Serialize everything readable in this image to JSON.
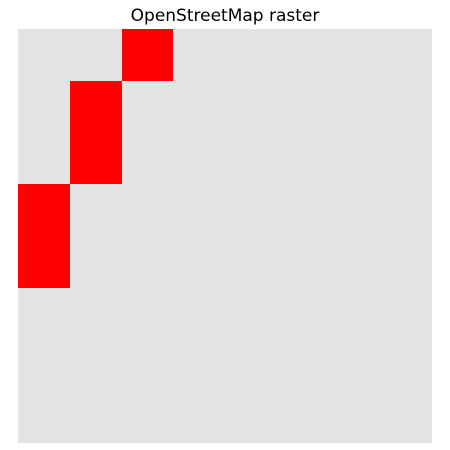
{
  "title": "OpenStreetMap raster",
  "raster": {
    "rows": 8,
    "cols": 8,
    "background_color": "#e3e3e3",
    "highlight_color": "#ff0000",
    "cells": [
      [
        0,
        0,
        1,
        0,
        0,
        0,
        0,
        0
      ],
      [
        0,
        1,
        0,
        0,
        0,
        0,
        0,
        0
      ],
      [
        0,
        1,
        0,
        0,
        0,
        0,
        0,
        0
      ],
      [
        1,
        0,
        0,
        0,
        0,
        0,
        0,
        0
      ],
      [
        1,
        0,
        0,
        0,
        0,
        0,
        0,
        0
      ],
      [
        0,
        0,
        0,
        0,
        0,
        0,
        0,
        0
      ],
      [
        0,
        0,
        0,
        0,
        0,
        0,
        0,
        0
      ],
      [
        0,
        0,
        0,
        0,
        0,
        0,
        0,
        0
      ]
    ]
  }
}
